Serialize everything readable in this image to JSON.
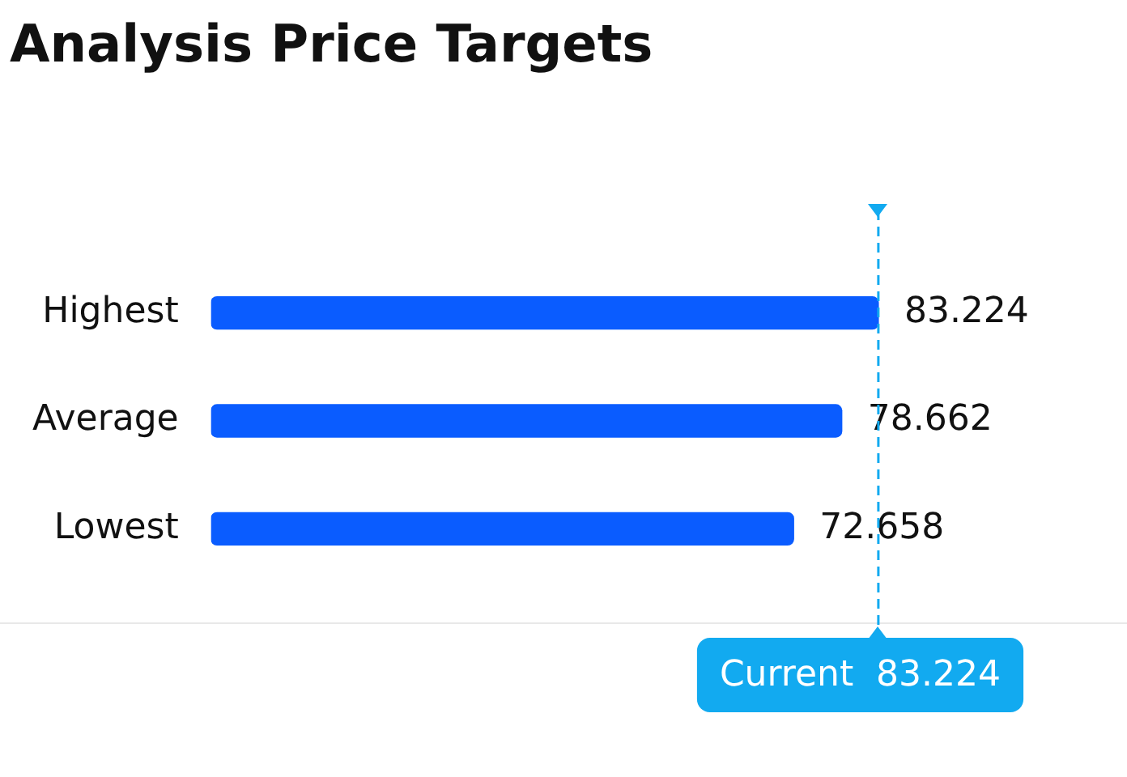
{
  "chart_data": {
    "type": "bar",
    "title": "Analysis Price Targets",
    "orientation": "horizontal",
    "categories": [
      "Highest",
      "Average",
      "Lowest"
    ],
    "values": [
      83.224,
      78.662,
      72.658
    ],
    "color": "#0a5cff",
    "data_labels": true,
    "legend": false,
    "grid": false,
    "tick_labels": "y",
    "ref_lines": [
      {
        "axis": "x",
        "value": 83.224,
        "label": "Current  83.224",
        "color": "#12aaf0",
        "line_style": "dashed"
      }
    ]
  }
}
